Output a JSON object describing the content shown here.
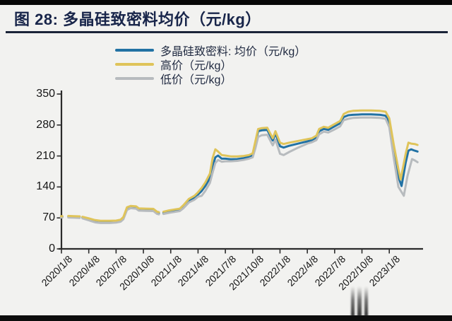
{
  "page": {
    "figure_label": "图 28",
    "title": "图 28: 多晶硅致密料均价（元/kg）"
  },
  "chart_data": {
    "type": "line",
    "title": "图 28: 多晶硅致密料均价（元/kg）",
    "xlabel": "",
    "ylabel": "",
    "ylim": [
      0,
      350
    ],
    "y_ticks": [
      350,
      280,
      210,
      140,
      70,
      0
    ],
    "x_tick_labels": [
      "2020/1/8",
      "2020/4/8",
      "2020/7/8",
      "2020/10/8",
      "2021/1/8",
      "2021/4/8",
      "2021/7/8",
      "2021/10/8",
      "2022/1/8",
      "2022/4/8",
      "2022/7/8",
      "2022/10/8",
      "2023/1/8"
    ],
    "x_unit": "months_since_2020_1_8",
    "x_months_per_tick": 3,
    "grid": "off",
    "legend_position": "top-center",
    "axis_color": "#2b2b2b",
    "note": "x of each point is months after 2020/1/8; gaps in early 2020 and Dec 2020 are real quote suspensions",
    "series": [
      {
        "id": "avg-price",
        "name": "多晶硅致密料: 均价（元/kg）",
        "color": "#2272a4",
        "segments": [
          [
            [
              -0.05,
              73
            ],
            [
              0.1,
              73
            ]
          ],
          [
            [
              0.75,
              73
            ],
            [
              1.4,
              72.5
            ],
            [
              2.0,
              72
            ]
          ],
          [
            [
              2.3,
              71
            ],
            [
              3.0,
              67
            ],
            [
              3.7,
              63
            ],
            [
              4.3,
              61.5
            ],
            [
              5.3,
              61.5
            ],
            [
              6.0,
              62
            ],
            [
              6.5,
              64
            ],
            [
              6.8,
              70
            ],
            [
              7.2,
              91
            ],
            [
              7.6,
              95
            ],
            [
              8.2,
              94
            ],
            [
              8.5,
              89
            ],
            [
              9.3,
              88.5
            ],
            [
              10.1,
              88
            ],
            [
              10.5,
              81.5
            ],
            [
              10.7,
              80.5
            ]
          ],
          [
            [
              11.2,
              81.5
            ],
            [
              11.8,
              84.5
            ],
            [
              12.4,
              86.5
            ],
            [
              13.0,
              88.5
            ],
            [
              13.4,
              95
            ],
            [
              14.0,
              109
            ],
            [
              14.6,
              116
            ],
            [
              15.0,
              123
            ],
            [
              15.4,
              131
            ],
            [
              15.8,
              142
            ],
            [
              16.3,
              160
            ],
            [
              16.6,
              185
            ],
            [
              16.9,
              207
            ],
            [
              17.2,
              211
            ],
            [
              17.6,
              204
            ],
            [
              18.0,
              204
            ],
            [
              18.6,
              202.5
            ],
            [
              19.3,
              203
            ],
            [
              20.0,
              205
            ],
            [
              20.6,
              208
            ],
            [
              21.0,
              212
            ],
            [
              21.3,
              240
            ],
            [
              21.6,
              266
            ],
            [
              22.0,
              268
            ],
            [
              22.6,
              269
            ],
            [
              23.2,
              245
            ],
            [
              23.5,
              261
            ],
            [
              24.0,
              232
            ],
            [
              24.4,
              229
            ],
            [
              25.0,
              233
            ],
            [
              26.0,
              238
            ],
            [
              27.0,
              243
            ],
            [
              27.5,
              246
            ],
            [
              28.0,
              252
            ],
            [
              28.3,
              266
            ],
            [
              28.8,
              271
            ],
            [
              29.3,
              269
            ],
            [
              29.9,
              276
            ],
            [
              30.6,
              284
            ],
            [
              31.0,
              298
            ],
            [
              31.5,
              302
            ],
            [
              32.0,
              303
            ],
            [
              33.0,
              304
            ],
            [
              34.0,
              304
            ],
            [
              35.0,
              303
            ],
            [
              35.6,
              301
            ],
            [
              36.0,
              287
            ],
            [
              36.5,
              222
            ],
            [
              37.0,
              163
            ],
            [
              37.35,
              142
            ],
            [
              37.8,
              195
            ],
            [
              38.1,
              222
            ],
            [
              38.4,
              225
            ],
            [
              38.8,
              222
            ],
            [
              39.1,
              220
            ]
          ]
        ]
      },
      {
        "id": "high-price",
        "name": "高价（元/kg）",
        "color": "#dfc45a",
        "segments": [
          [
            [
              -0.05,
              74
            ],
            [
              0.1,
              74
            ]
          ],
          [
            [
              0.75,
              74.5
            ],
            [
              1.4,
              74
            ],
            [
              2.0,
              73.5
            ]
          ],
          [
            [
              2.3,
              72.5
            ],
            [
              3.0,
              69
            ],
            [
              3.7,
              65
            ],
            [
              4.3,
              63.5
            ],
            [
              5.3,
              63.5
            ],
            [
              6.0,
              64
            ],
            [
              6.5,
              66
            ],
            [
              6.8,
              72
            ],
            [
              7.2,
              94
            ],
            [
              7.6,
              97
            ],
            [
              8.2,
              96
            ],
            [
              8.5,
              91.5
            ],
            [
              9.3,
              91
            ],
            [
              10.1,
              90.5
            ],
            [
              10.5,
              84
            ],
            [
              10.7,
              83
            ]
          ],
          [
            [
              11.2,
              84
            ],
            [
              11.8,
              87
            ],
            [
              12.4,
              89
            ],
            [
              13.0,
              91
            ],
            [
              13.4,
              99
            ],
            [
              14.0,
              113
            ],
            [
              14.6,
              120
            ],
            [
              15.0,
              128
            ],
            [
              15.4,
              138
            ],
            [
              15.8,
              150
            ],
            [
              16.3,
              170
            ],
            [
              16.6,
              205
            ],
            [
              16.9,
              225
            ],
            [
              17.2,
              220
            ],
            [
              17.6,
              212
            ],
            [
              18.0,
              211
            ],
            [
              18.6,
              209
            ],
            [
              19.3,
              209
            ],
            [
              20.0,
              210
            ],
            [
              20.6,
              212
            ],
            [
              21.0,
              216
            ],
            [
              21.3,
              244
            ],
            [
              21.6,
              271
            ],
            [
              22.0,
              273
            ],
            [
              22.6,
              274
            ],
            [
              23.2,
              250
            ],
            [
              23.5,
              266
            ],
            [
              24.0,
              240
            ],
            [
              24.4,
              237
            ],
            [
              25.0,
              240
            ],
            [
              26.0,
              244
            ],
            [
              27.0,
              248
            ],
            [
              27.5,
              250
            ],
            [
              28.0,
              256
            ],
            [
              28.3,
              271
            ],
            [
              28.8,
              276
            ],
            [
              29.3,
              274
            ],
            [
              29.9,
              281
            ],
            [
              30.6,
              289
            ],
            [
              31.0,
              305
            ],
            [
              31.5,
              310
            ],
            [
              32.0,
              312
            ],
            [
              33.0,
              313
            ],
            [
              34.0,
              313
            ],
            [
              35.0,
              312
            ],
            [
              35.6,
              310
            ],
            [
              36.0,
              295
            ],
            [
              36.5,
              235
            ],
            [
              37.0,
              180
            ],
            [
              37.25,
              157
            ],
            [
              37.8,
              215
            ],
            [
              38.1,
              240
            ],
            [
              38.4,
              238
            ],
            [
              38.8,
              237
            ],
            [
              39.1,
              235
            ]
          ]
        ]
      },
      {
        "id": "low-price",
        "name": "低价（元/kg）",
        "color": "#b7bbbe",
        "segments": [
          [
            [
              -0.05,
              71
            ],
            [
              0.1,
              71
            ]
          ],
          [
            [
              0.75,
              71
            ],
            [
              1.4,
              70.5
            ],
            [
              2.0,
              70
            ]
          ],
          [
            [
              2.3,
              69
            ],
            [
              3.0,
              64.5
            ],
            [
              3.7,
              60
            ],
            [
              4.3,
              58.5
            ],
            [
              5.3,
              58.5
            ],
            [
              6.0,
              59.5
            ],
            [
              6.5,
              61.5
            ],
            [
              6.8,
              67
            ],
            [
              7.2,
              88
            ],
            [
              7.6,
              92
            ],
            [
              8.2,
              91
            ],
            [
              8.5,
              86.5
            ],
            [
              9.3,
              86
            ],
            [
              10.1,
              85.5
            ],
            [
              10.5,
              79
            ],
            [
              10.7,
              78
            ]
          ],
          [
            [
              11.2,
              79
            ],
            [
              11.8,
              81.5
            ],
            [
              12.4,
              83.5
            ],
            [
              13.0,
              85.5
            ],
            [
              13.4,
              92
            ],
            [
              14.0,
              105
            ],
            [
              14.6,
              111
            ],
            [
              15.0,
              118
            ],
            [
              15.4,
              120
            ],
            [
              15.8,
              131
            ],
            [
              16.3,
              149
            ],
            [
              16.6,
              172
            ],
            [
              16.9,
              194
            ],
            [
              17.2,
              201
            ],
            [
              17.6,
              197
            ],
            [
              18.0,
              198
            ],
            [
              18.6,
              198
            ],
            [
              19.3,
              199
            ],
            [
              20.0,
              201
            ],
            [
              20.6,
              204
            ],
            [
              21.0,
              207
            ],
            [
              21.3,
              228
            ],
            [
              21.6,
              253
            ],
            [
              22.0,
              257
            ],
            [
              22.6,
              258
            ],
            [
              23.2,
              234
            ],
            [
              23.5,
              247
            ],
            [
              24.0,
              215
            ],
            [
              24.4,
              212
            ],
            [
              25.0,
              219
            ],
            [
              26.0,
              229
            ],
            [
              27.0,
              238
            ],
            [
              27.5,
              241
            ],
            [
              28.0,
              246
            ],
            [
              28.3,
              259
            ],
            [
              28.8,
              265
            ],
            [
              29.3,
              263
            ],
            [
              29.9,
              269
            ],
            [
              30.6,
              277
            ],
            [
              31.0,
              291
            ],
            [
              31.5,
              294
            ],
            [
              32.0,
              296
            ],
            [
              33.0,
              297
            ],
            [
              34.0,
              297
            ],
            [
              35.0,
              296
            ],
            [
              35.6,
              294
            ],
            [
              36.0,
              275
            ],
            [
              36.5,
              205
            ],
            [
              37.0,
              140
            ],
            [
              37.6,
              120
            ],
            [
              38.0,
              165
            ],
            [
              38.5,
              203
            ],
            [
              38.8,
              200
            ],
            [
              39.1,
              196
            ]
          ]
        ]
      }
    ]
  }
}
